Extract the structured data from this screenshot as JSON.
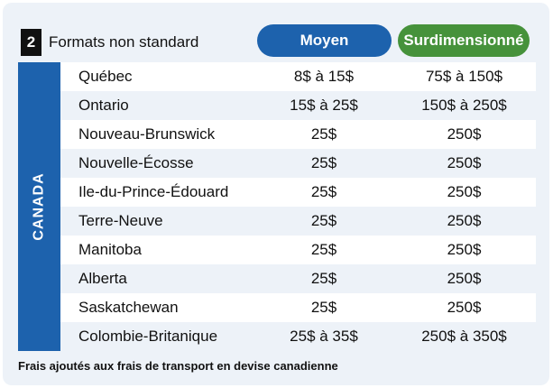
{
  "header": {
    "number": "2",
    "title": "Formats non standard",
    "col_moyen": "Moyen",
    "col_surdimensionne": "Surdimensionné",
    "color_moyen": "#1d62ad",
    "color_surdimensionne": "#46923b"
  },
  "side_label": "CANADA",
  "rows": [
    {
      "province": "Québec",
      "moyen": "8$ à 15$",
      "surdimensionne": "75$ à 150$"
    },
    {
      "province": "Ontario",
      "moyen": "15$ à 25$",
      "surdimensionne": "150$ à 250$"
    },
    {
      "province": "Nouveau-Brunswick",
      "moyen": "25$",
      "surdimensionne": "250$"
    },
    {
      "province": "Nouvelle-Écosse",
      "moyen": "25$",
      "surdimensionne": "250$"
    },
    {
      "province": "Ile-du-Prince-Édouard",
      "moyen": "25$",
      "surdimensionne": "250$"
    },
    {
      "province": "Terre-Neuve",
      "moyen": "25$",
      "surdimensionne": "250$"
    },
    {
      "province": "Manitoba",
      "moyen": "25$",
      "surdimensionne": "250$"
    },
    {
      "province": "Alberta",
      "moyen": "25$",
      "surdimensionne": "250$"
    },
    {
      "province": "Saskatchewan",
      "moyen": "25$",
      "surdimensionne": "250$"
    },
    {
      "province": "Colombie-Britanique",
      "moyen": "25$ à 35$",
      "surdimensionne": "250$ à 350$"
    }
  ],
  "footnote": "Frais ajoutés aux frais de transport en devise canadienne"
}
